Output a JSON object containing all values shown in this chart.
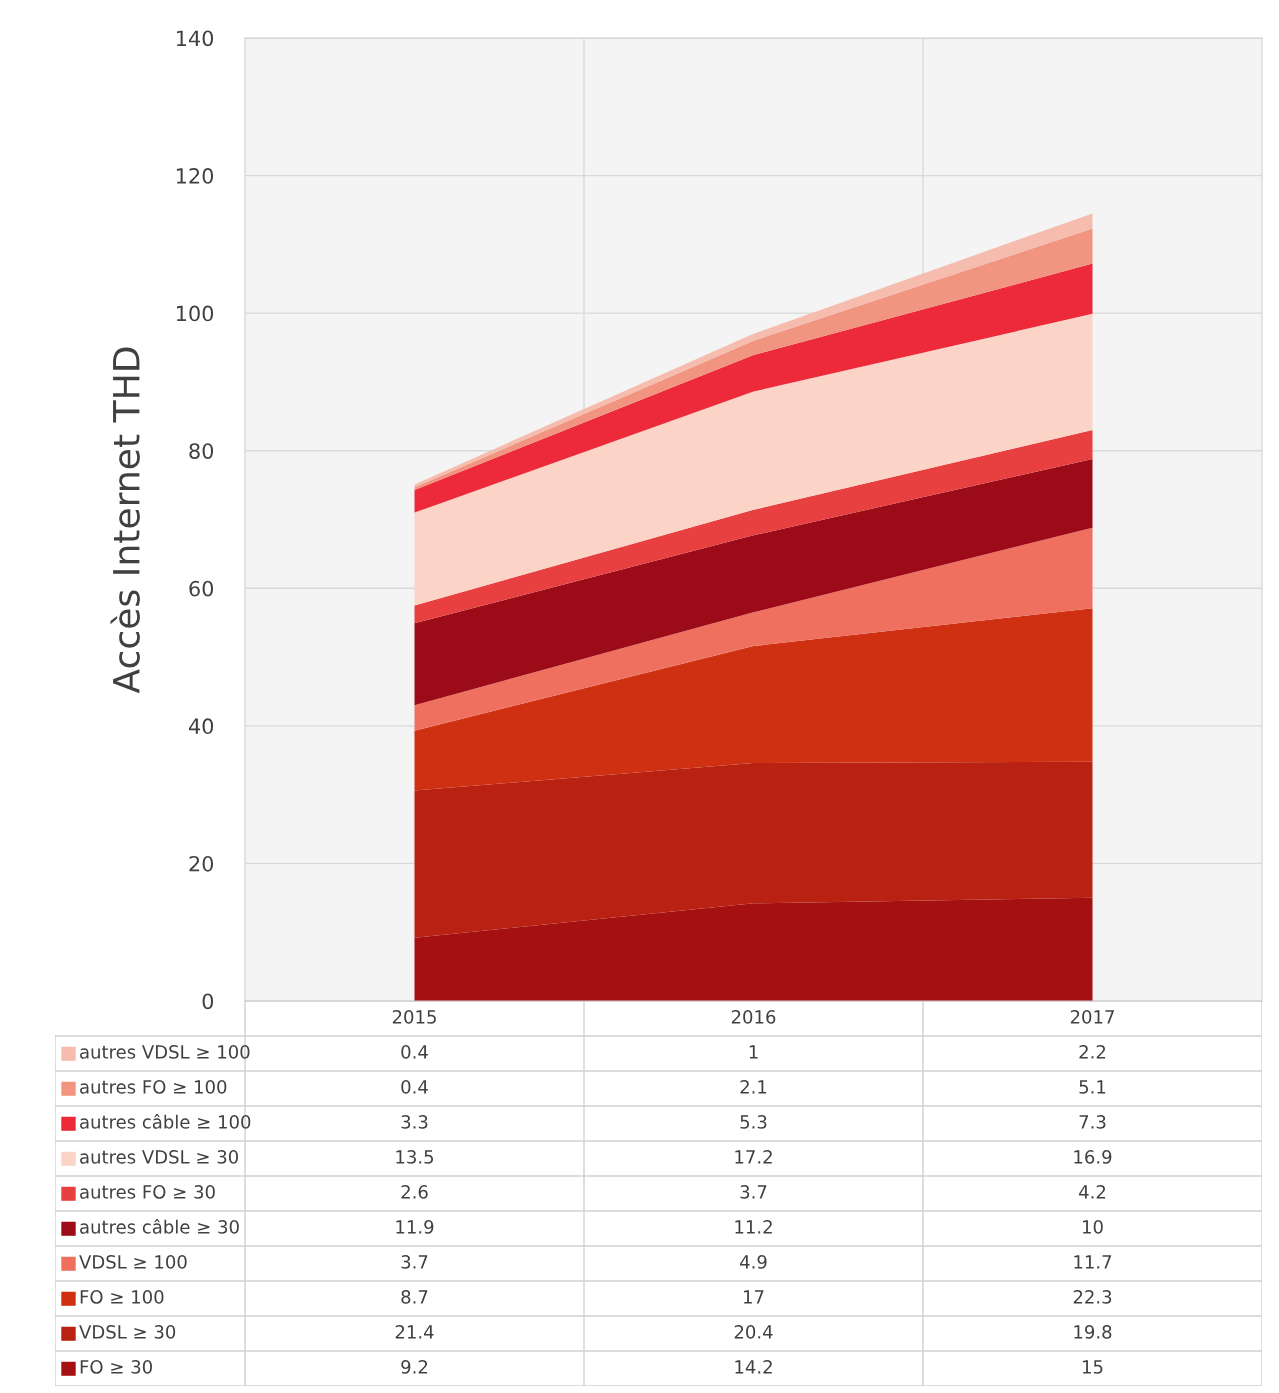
{
  "chart_data": {
    "type": "area",
    "stacked": true,
    "ylabel": "Accès Internet THD",
    "categories": [
      "2015",
      "2016",
      "2017"
    ],
    "ylim": [
      0,
      140
    ],
    "yticks": [
      0,
      20,
      40,
      60,
      80,
      100,
      120,
      140
    ],
    "grid": true,
    "legend": "bottom",
    "data_labels": true,
    "series": [
      {
        "name": "FO ≥ 30",
        "color": "#a51011",
        "values": [
          9.2,
          14.2,
          15
        ]
      },
      {
        "name": "VDSL ≥ 30",
        "color": "#b92212",
        "values": [
          21.4,
          20.4,
          19.8
        ]
      },
      {
        "name": "FO ≥ 100",
        "color": "#d03012",
        "values": [
          8.7,
          17,
          22.3
        ]
      },
      {
        "name": "VDSL ≥ 100",
        "color": "#f07060",
        "values": [
          3.7,
          4.9,
          11.7
        ]
      },
      {
        "name": "autres câble ≥ 30",
        "color": "#9c0c18",
        "values": [
          11.9,
          11.2,
          10
        ]
      },
      {
        "name": "autres FO ≥ 30",
        "color": "#e84040",
        "values": [
          2.6,
          3.7,
          4.2
        ]
      },
      {
        "name": "autres VDSL ≥ 30",
        "color": "#fbd3c7",
        "values": [
          13.5,
          17.2,
          16.9
        ]
      },
      {
        "name": "autres câble ≥ 100",
        "color": "#ec2a3a",
        "values": [
          3.3,
          5.3,
          7.3
        ]
      },
      {
        "name": "autres FO ≥ 100",
        "color": "#f29580",
        "values": [
          0.4,
          2.1,
          5.1
        ]
      },
      {
        "name": "autres VDSL ≥ 100",
        "color": "#f6bcae",
        "values": [
          0.4,
          1,
          2.2
        ]
      }
    ]
  }
}
